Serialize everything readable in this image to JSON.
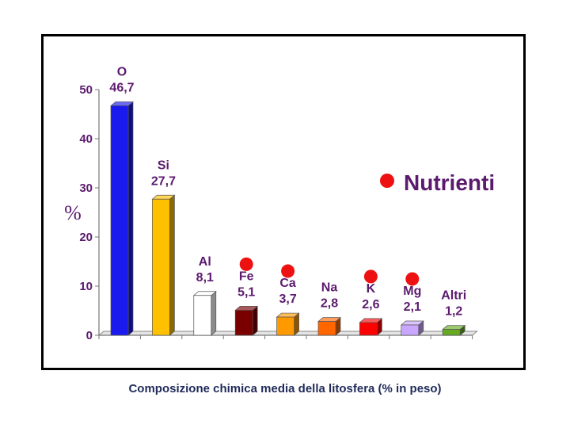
{
  "chart_data": {
    "type": "bar",
    "categories": [
      "O",
      "Si",
      "Al",
      "Fe",
      "Ca",
      "Na",
      "K",
      "Mg",
      "Altri"
    ],
    "values": [
      46.7,
      27.7,
      8.1,
      5.1,
      3.7,
      2.8,
      2.6,
      2.1,
      1.2
    ],
    "value_labels": [
      "46,7",
      "27,7",
      "8,1",
      "5,1",
      "3,7",
      "2,8",
      "2,6",
      "2,1",
      "1,2"
    ],
    "colors": [
      "#1a1aee",
      "#ffc000",
      "#ffffff",
      "#7a0000",
      "#ff9900",
      "#ff6600",
      "#ff0000",
      "#c9a6ff",
      "#66aa22"
    ],
    "nutrient_flags": [
      false,
      false,
      false,
      true,
      true,
      false,
      true,
      true,
      false
    ],
    "ylim": [
      0,
      50
    ],
    "yticks": [
      0,
      10,
      20,
      30,
      40,
      50
    ],
    "ylabel": "%",
    "grid": false,
    "legend": {
      "label": "Nutrienti",
      "marker_color": "#ee1111",
      "placement": "right"
    },
    "label_color": "#5b1a6e",
    "legend_text_color": "#5b1a6e"
  },
  "caption": "Composizione chimica media della litosfera (% in peso)"
}
